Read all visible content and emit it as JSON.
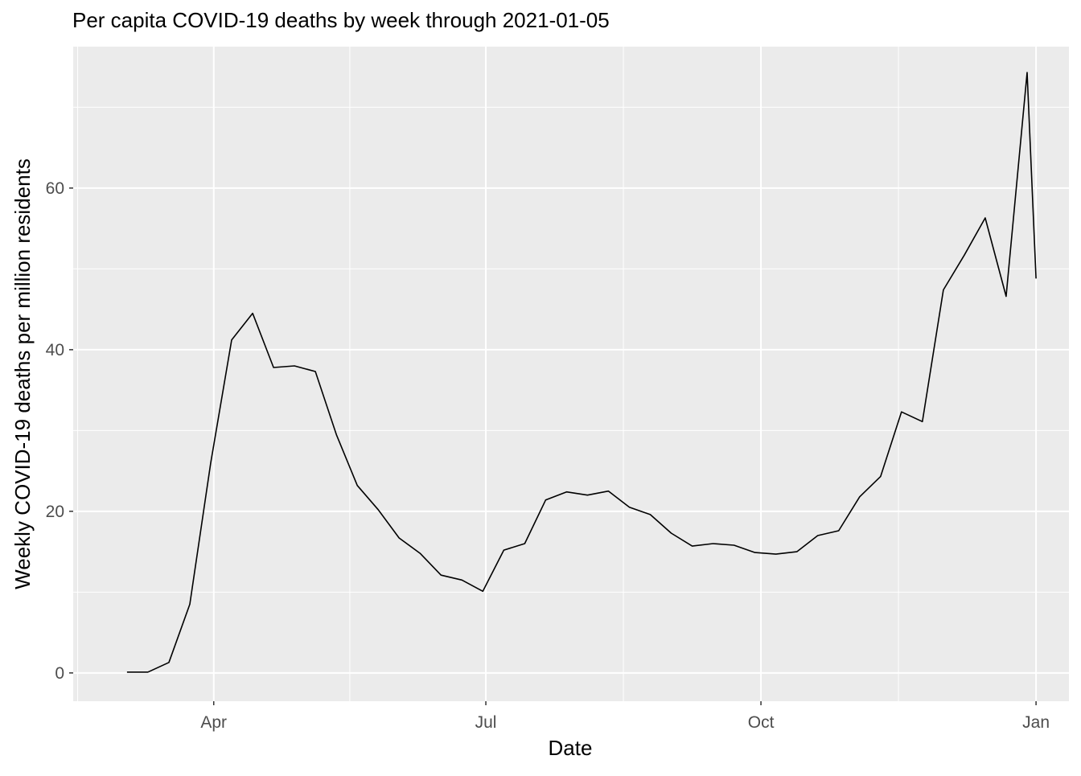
{
  "chart_data": {
    "type": "line",
    "title": "Per capita COVID-19 deaths by week through 2021-01-05",
    "xlabel": "Date",
    "ylabel": "Weekly COVID-19 deaths per million residents",
    "xlim": [
      "2020-02-14",
      "2021-01-12"
    ],
    "ylim": [
      -3.5,
      77.5
    ],
    "x_ticks": [
      {
        "date": "2020-04-01",
        "label": "Apr"
      },
      {
        "date": "2020-07-01",
        "label": "Jul"
      },
      {
        "date": "2020-10-01",
        "label": "Oct"
      },
      {
        "date": "2021-01-01",
        "label": "Jan"
      }
    ],
    "y_ticks": [
      0,
      20,
      40,
      60
    ],
    "grid": true,
    "series": [
      {
        "color": "#000000",
        "x": [
          "2020-03-03",
          "2020-03-10",
          "2020-03-17",
          "2020-03-24",
          "2020-03-31",
          "2020-04-07",
          "2020-04-14",
          "2020-04-21",
          "2020-04-28",
          "2020-05-05",
          "2020-05-12",
          "2020-05-19",
          "2020-05-26",
          "2020-06-02",
          "2020-06-09",
          "2020-06-16",
          "2020-06-23",
          "2020-06-30",
          "2020-07-07",
          "2020-07-14",
          "2020-07-21",
          "2020-07-28",
          "2020-08-04",
          "2020-08-11",
          "2020-08-18",
          "2020-08-25",
          "2020-09-01",
          "2020-09-08",
          "2020-09-15",
          "2020-09-22",
          "2020-09-29",
          "2020-10-06",
          "2020-10-13",
          "2020-10-20",
          "2020-10-27",
          "2020-11-03",
          "2020-11-10",
          "2020-11-17",
          "2020-11-24",
          "2020-12-01",
          "2020-12-08",
          "2020-12-15",
          "2020-12-22",
          "2020-12-29",
          "2021-01-01"
        ],
        "values": [
          0.1,
          0.1,
          1.3,
          8.5,
          26.0,
          41.2,
          44.5,
          37.8,
          38.0,
          37.3,
          29.5,
          23.2,
          20.2,
          16.7,
          14.8,
          12.1,
          11.5,
          10.1,
          15.2,
          16.0,
          21.4,
          22.4,
          22.0,
          22.5,
          20.5,
          19.6,
          17.3,
          15.7,
          16.0,
          15.8,
          14.9,
          14.7,
          15.0,
          17.0,
          17.6,
          21.8,
          24.3,
          32.3,
          31.1,
          47.4,
          51.7,
          56.3,
          46.6,
          74.3,
          48.8
        ]
      }
    ]
  }
}
